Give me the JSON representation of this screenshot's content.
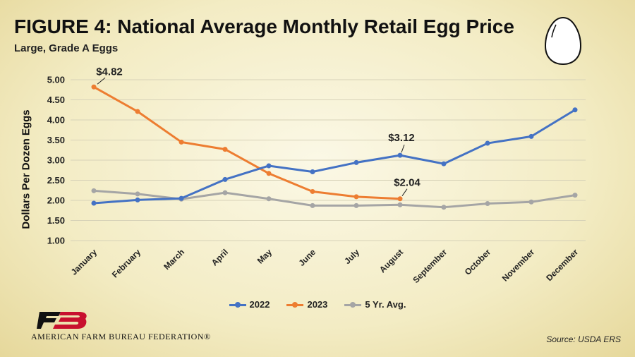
{
  "header": {
    "title": "FIGURE  4: National Average Monthly Retail Egg Price",
    "subtitle": "Large, Grade A Eggs"
  },
  "footer": {
    "org_name": "AMERICAN FARM BUREAU FEDERATION®",
    "source": "Source: USDA ERS"
  },
  "icons": {
    "decoration": "egg-icon",
    "logo": "fb-logo-icon"
  },
  "chart_data": {
    "type": "line",
    "ylabel": "Dollars Per Dozen Eggs",
    "xlabel": "",
    "ylim": [
      1.0,
      5.0
    ],
    "yticks": [
      "1.00",
      "1.50",
      "2.00",
      "2.50",
      "3.00",
      "3.50",
      "4.00",
      "4.50",
      "5.00"
    ],
    "grid": true,
    "legend_position": "bottom",
    "categories": [
      "January",
      "February",
      "March",
      "April",
      "May",
      "June",
      "July",
      "August",
      "September",
      "October",
      "November",
      "December"
    ],
    "series": [
      {
        "name": "2022",
        "color": "#4472c4",
        "values": [
          1.93,
          2.01,
          2.05,
          2.52,
          2.86,
          2.71,
          2.94,
          3.12,
          2.91,
          3.42,
          3.59,
          4.25
        ]
      },
      {
        "name": "2023",
        "color": "#ed7d31",
        "values": [
          4.82,
          4.21,
          3.45,
          3.27,
          2.67,
          2.22,
          2.09,
          2.04,
          null,
          null,
          null,
          null
        ]
      },
      {
        "name": "5 Yr. Avg.",
        "color": "#a5a5a5",
        "values": [
          2.24,
          2.16,
          2.03,
          2.19,
          2.04,
          1.87,
          1.87,
          1.89,
          1.83,
          1.92,
          1.96,
          2.13
        ]
      }
    ],
    "annotations": [
      {
        "text": "$4.82",
        "series": "2023",
        "category": "January"
      },
      {
        "text": "$3.12",
        "series": "2022",
        "category": "August"
      },
      {
        "text": "$2.04",
        "series": "2023",
        "category": "August"
      }
    ]
  }
}
